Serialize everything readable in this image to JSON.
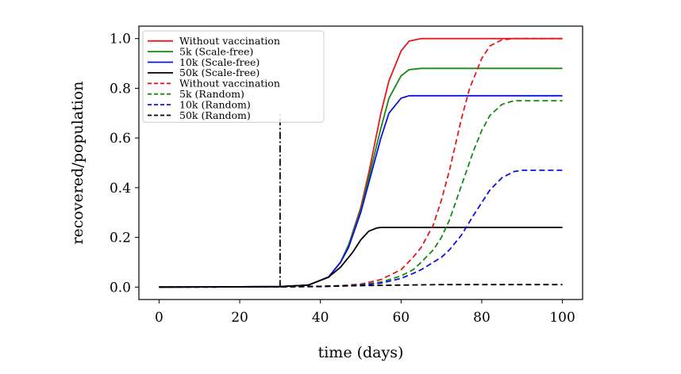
{
  "chart_data": {
    "type": "line",
    "xlabel": "time (days)",
    "ylabel": "recovered/population",
    "xlim": [
      -5,
      105
    ],
    "ylim": [
      -0.05,
      1.05
    ],
    "xticks": [
      0,
      20,
      40,
      60,
      80,
      100
    ],
    "yticks": [
      0.0,
      0.2,
      0.4,
      0.6,
      0.8,
      1.0
    ],
    "xtick_labels": [
      "0",
      "20",
      "40",
      "60",
      "80",
      "100"
    ],
    "ytick_labels": [
      "0.0",
      "0.2",
      "0.4",
      "0.6",
      "0.8",
      "1.0"
    ],
    "grid": false,
    "legend_position": "top-left",
    "vertical_marker": {
      "x": 30,
      "y_range": [
        0.0,
        0.7
      ],
      "style": "dash-dot",
      "color": "#000000"
    },
    "series": [
      {
        "name": "Without vaccination",
        "color": "#e31a1c",
        "style": "solid",
        "x": [
          0,
          30,
          37,
          42,
          45,
          47,
          50,
          52,
          55,
          57,
          60,
          62,
          65,
          70,
          80,
          100
        ],
        "y": [
          0,
          0.002,
          0.008,
          0.04,
          0.1,
          0.17,
          0.32,
          0.46,
          0.7,
          0.83,
          0.95,
          0.99,
          1.0,
          1.0,
          1.0,
          1.0
        ]
      },
      {
        "name": "5k (Scale-free)",
        "color": "#138a13",
        "style": "solid",
        "x": [
          0,
          30,
          37,
          42,
          45,
          47,
          50,
          52,
          55,
          57,
          60,
          62,
          65,
          70,
          100
        ],
        "y": [
          0,
          0.002,
          0.008,
          0.04,
          0.1,
          0.17,
          0.31,
          0.44,
          0.64,
          0.76,
          0.85,
          0.875,
          0.88,
          0.88,
          0.88
        ]
      },
      {
        "name": "10k (Scale-free)",
        "color": "#1010e6",
        "style": "solid",
        "x": [
          0,
          30,
          37,
          42,
          45,
          47,
          50,
          52,
          55,
          57,
          60,
          62,
          65,
          70,
          100
        ],
        "y": [
          0,
          0.002,
          0.008,
          0.04,
          0.1,
          0.16,
          0.3,
          0.42,
          0.6,
          0.7,
          0.76,
          0.77,
          0.77,
          0.77,
          0.77
        ]
      },
      {
        "name": "50k (Scale-free)",
        "color": "#000000",
        "style": "solid",
        "x": [
          0,
          30,
          37,
          42,
          45,
          47,
          48,
          50,
          52,
          54,
          55,
          57,
          60,
          70,
          100
        ],
        "y": [
          0,
          0.002,
          0.008,
          0.04,
          0.08,
          0.12,
          0.14,
          0.19,
          0.225,
          0.238,
          0.24,
          0.24,
          0.24,
          0.24,
          0.24
        ]
      },
      {
        "name": "Without vaccination",
        "color": "#e31a1c",
        "style": "dashed",
        "x": [
          0,
          30,
          40,
          45,
          50,
          55,
          60,
          63,
          65,
          68,
          70,
          72,
          75,
          77,
          80,
          82,
          85,
          88,
          90,
          100
        ],
        "y": [
          0,
          0.001,
          0.003,
          0.006,
          0.012,
          0.03,
          0.07,
          0.12,
          0.16,
          0.25,
          0.35,
          0.47,
          0.68,
          0.8,
          0.92,
          0.97,
          0.995,
          1.0,
          1.0,
          1.0
        ]
      },
      {
        "name": "5k (Random)",
        "color": "#138a13",
        "style": "dashed",
        "x": [
          0,
          30,
          40,
          45,
          50,
          55,
          60,
          63,
          65,
          68,
          70,
          72,
          75,
          78,
          80,
          82,
          85,
          88,
          90,
          100
        ],
        "y": [
          0,
          0.001,
          0.003,
          0.005,
          0.01,
          0.02,
          0.045,
          0.07,
          0.1,
          0.15,
          0.2,
          0.27,
          0.41,
          0.55,
          0.63,
          0.69,
          0.735,
          0.75,
          0.75,
          0.75
        ]
      },
      {
        "name": "10k (Random)",
        "color": "#1010e6",
        "style": "dashed",
        "x": [
          0,
          30,
          40,
          45,
          50,
          55,
          60,
          63,
          65,
          68,
          70,
          72,
          75,
          78,
          80,
          82,
          85,
          88,
          90,
          100
        ],
        "y": [
          0,
          0.001,
          0.002,
          0.004,
          0.008,
          0.016,
          0.035,
          0.055,
          0.07,
          0.1,
          0.12,
          0.15,
          0.21,
          0.29,
          0.34,
          0.39,
          0.44,
          0.465,
          0.47,
          0.47
        ]
      },
      {
        "name": "50k (Random)",
        "color": "#000000",
        "style": "dashed",
        "x": [
          0,
          30,
          40,
          50,
          60,
          70,
          80,
          90,
          100
        ],
        "y": [
          0,
          0.001,
          0.003,
          0.006,
          0.008,
          0.01,
          0.01,
          0.01,
          0.01
        ]
      }
    ]
  }
}
